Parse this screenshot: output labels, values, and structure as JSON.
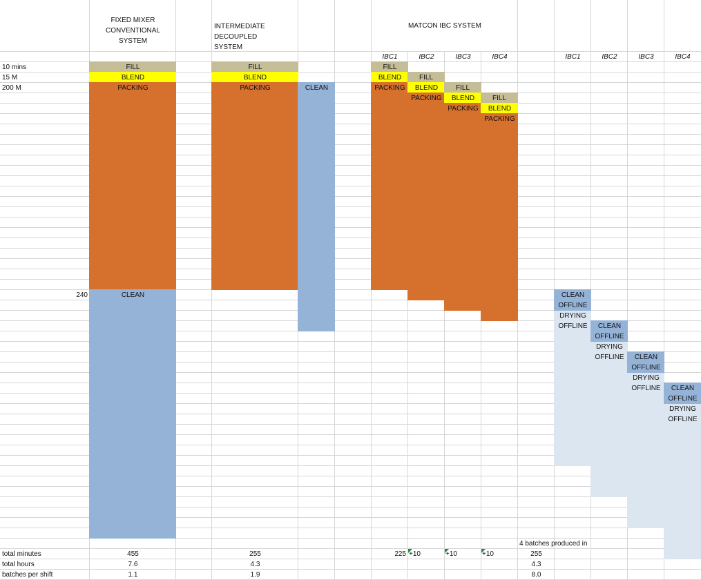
{
  "columns": {
    "fixed_mixer": "FIXED MIXER CONVENTIONAL SYSTEM",
    "intermediate": "INTERMEDIATE DECOUPLED SYSTEM",
    "matcon": "MATCON IBC SYSTEM"
  },
  "ibc_headers": [
    "IBC1",
    "IBC2",
    "IBC3",
    "IBC4"
  ],
  "offline_headers": [
    "IBC1",
    "IBC2",
    "IBC3",
    "IBC4"
  ],
  "row_labels": [
    "10 mins",
    "15 M",
    "200 M"
  ],
  "marker": 240,
  "lanes": {
    "fixed_mixer": [
      "FILL",
      "BLEND",
      "PACKING",
      "CLEAN"
    ],
    "intermediate": [
      "FILL",
      "BLEND",
      "PACKING"
    ],
    "intermediate_clean": "CLEAN",
    "ibc": [
      [
        "FILL",
        "BLEND",
        "PACKING"
      ],
      [
        "FILL",
        "BLEND",
        "PACKING"
      ],
      [
        "FILL",
        "BLEND",
        "PACKING"
      ],
      [
        "FILL",
        "BLEND",
        "PACKING"
      ]
    ],
    "offline": [
      [
        "CLEAN",
        "OFFLINE",
        "DRYING",
        "OFFLINE"
      ],
      [
        "CLEAN",
        "OFFLINE",
        "DRYING",
        "OFFLINE"
      ],
      [
        "CLEAN",
        "OFFLINE",
        "DRYING",
        "OFFLINE"
      ],
      [
        "CLEAN",
        "OFFLINE",
        "DRYING",
        "OFFLINE"
      ]
    ]
  },
  "totals": {
    "labels": [
      "total minutes",
      "total hours",
      "batches per shift"
    ],
    "fixed_mixer": [
      455,
      7.6,
      1.1
    ],
    "intermediate": [
      255,
      4.3,
      1.9
    ],
    "ibc1_minutes": 225,
    "ibc_offsets": [
      "+10",
      "+10",
      "+10"
    ],
    "note": "4 batches produced in",
    "matcon": [
      255,
      4.3,
      "8.0"
    ]
  }
}
